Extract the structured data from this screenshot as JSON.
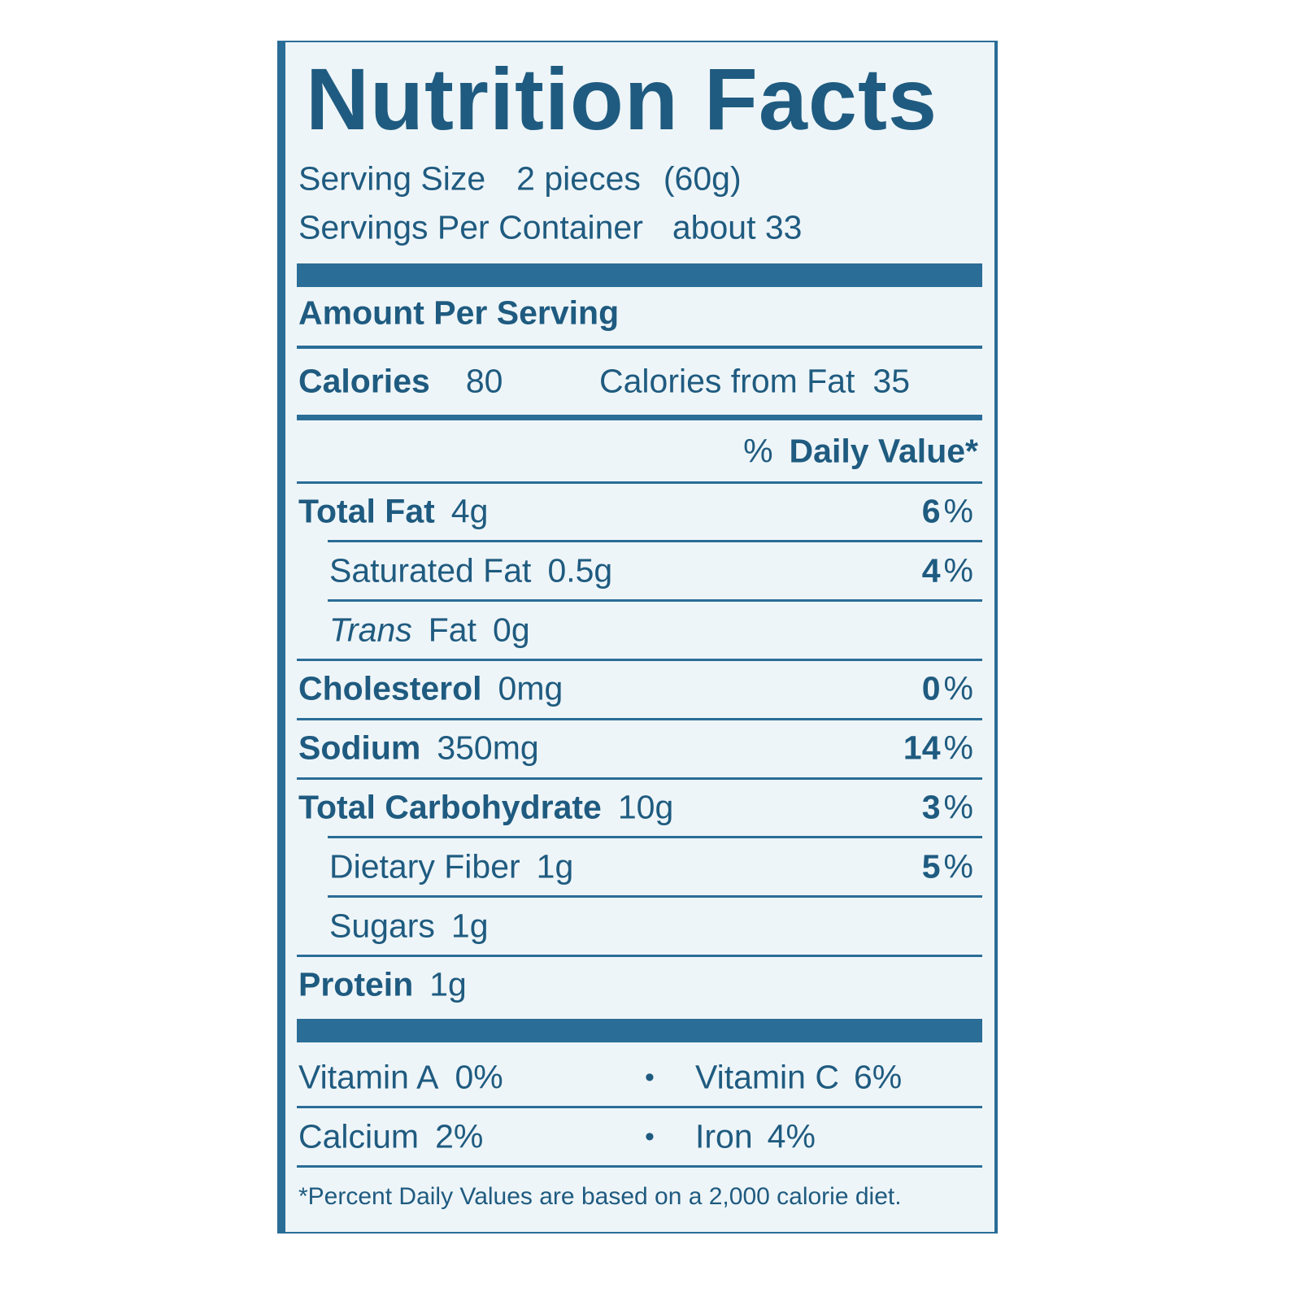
{
  "title": "Nutrition Facts",
  "serving_size": {
    "label": "Serving Size",
    "value": "2 pieces",
    "weight": "(60g)"
  },
  "servings_per_container": {
    "label": "Servings Per Container",
    "value": "about 33"
  },
  "amount_per_serving": "Amount Per Serving",
  "calories": {
    "label": "Calories",
    "value": "80"
  },
  "calories_from_fat": {
    "label": "Calories from Fat",
    "value": "35"
  },
  "daily_value_header": {
    "symbol": "%",
    "label": "Daily Value*"
  },
  "nutrients": [
    {
      "name": "Total Fat",
      "amount": "4g",
      "dv": "6",
      "dv_unit": "%",
      "sub": [
        {
          "name": "Saturated Fat",
          "amount": "0.5g",
          "dv": "4",
          "dv_unit": "%"
        },
        {
          "name_italic": "Trans",
          "name": "Fat",
          "amount": "0g"
        }
      ]
    },
    {
      "name": "Cholesterol",
      "amount": "0mg",
      "dv": "0",
      "dv_unit": "%"
    },
    {
      "name": "Sodium",
      "amount": "350mg",
      "dv": "14",
      "dv_unit": "%"
    },
    {
      "name": "Total Carbohydrate",
      "amount": "10g",
      "dv": "3",
      "dv_unit": "%",
      "sub": [
        {
          "name": "Dietary Fiber",
          "amount": "1g",
          "dv": "5",
          "dv_unit": "%"
        },
        {
          "name": "Sugars",
          "amount": "1g"
        }
      ]
    },
    {
      "name": "Protein",
      "amount": "1g"
    }
  ],
  "vitamins": [
    [
      {
        "name": "Vitamin A",
        "value": "0%"
      },
      {
        "name": "Vitamin C",
        "value": "6%"
      }
    ],
    [
      {
        "name": "Calcium",
        "value": "2%"
      },
      {
        "name": "Iron",
        "value": "4%"
      }
    ]
  ],
  "footnote": "*Percent Daily Values are based on a 2,000 calorie diet."
}
